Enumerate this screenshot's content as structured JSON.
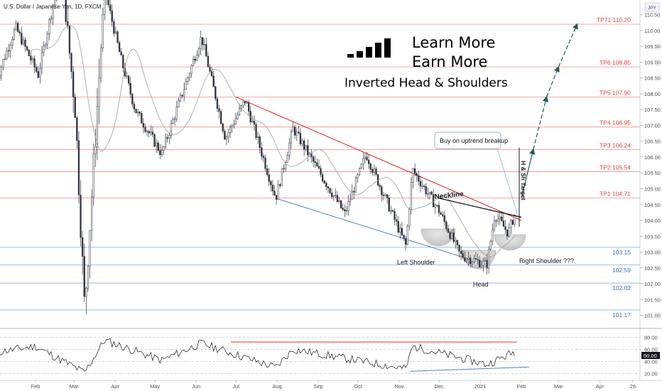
{
  "header": {
    "symbol_title": "U.S. Dollar / Japanese Yen, 1D, FXCM",
    "currency_badge": "JPY"
  },
  "branding": {
    "line1": "Learn More",
    "line2": "Earn   More",
    "pattern_title": "Inverted Head & Shoulders",
    "logo": "signal-bars-logo"
  },
  "annotations": {
    "neckline": "Neckline",
    "left_shoulder": "Left Shoulder",
    "head": "Head",
    "right_shoulder": "Right Shoulder ???",
    "buy_note": "Buy on uptrend breakup",
    "target_label": "H & Sh Target"
  },
  "colors": {
    "bull": "#26a69a",
    "bear": "#ef5350",
    "candle": "#2f3340",
    "tp_line": "#e57373",
    "support_line": "#7da7d9",
    "trend_red": "#e0312b",
    "trend_blue": "#4f86b8",
    "projection": "#1f5c55",
    "rsi_line": "#131722"
  },
  "chart_data": [
    {
      "type": "candlestick",
      "title": "U.S. Dollar / Japanese Yen, 1D, FXCM",
      "ylim": [
        100.8,
        111.6
      ],
      "y_ticks": [
        101.0,
        101.5,
        102.0,
        102.5,
        103.0,
        103.5,
        104.0,
        104.5,
        105.0,
        105.5,
        106.0,
        106.5,
        107.0,
        107.5,
        108.0,
        108.5,
        109.0,
        109.5,
        110.0,
        110.5,
        111.0
      ],
      "x_ticks": [
        "Feb",
        "Mar",
        "Apr",
        "May",
        "Jun",
        "Jul",
        "Aug",
        "Sep",
        "Oct",
        "Nov",
        "Dec",
        "2021",
        "Feb",
        "Mar",
        "Apr",
        "26"
      ],
      "targets": [
        {
          "label": "TP71",
          "value": 110.2
        },
        {
          "label": "TP6",
          "value": 108.85
        },
        {
          "label": "TP5",
          "value": 107.9
        },
        {
          "label": "TP4",
          "value": 106.95
        },
        {
          "label": "TP3",
          "value": 106.24
        },
        {
          "label": "TP2",
          "value": 105.54
        },
        {
          "label": "TP1",
          "value": 104.71
        }
      ],
      "support_levels": [
        103.15,
        102.59,
        102.02,
        101.17
      ],
      "price_path": [
        {
          "x": "2020-01-02",
          "y": 108.4
        },
        {
          "x": "2020-01-17",
          "y": 110.1
        },
        {
          "x": "2020-02-03",
          "y": 108.6
        },
        {
          "x": "2020-02-20",
          "y": 112.0
        },
        {
          "x": "2020-03-02",
          "y": 107.5
        },
        {
          "x": "2020-03-09",
          "y": 101.2
        },
        {
          "x": "2020-03-24",
          "y": 111.3
        },
        {
          "x": "2020-04-06",
          "y": 109.0
        },
        {
          "x": "2020-04-16",
          "y": 107.5
        },
        {
          "x": "2020-05-06",
          "y": 106.1
        },
        {
          "x": "2020-05-19",
          "y": 107.7
        },
        {
          "x": "2020-06-05",
          "y": 109.8
        },
        {
          "x": "2020-06-23",
          "y": 106.6
        },
        {
          "x": "2020-07-08",
          "y": 107.8
        },
        {
          "x": "2020-07-31",
          "y": 104.7
        },
        {
          "x": "2020-08-13",
          "y": 106.9
        },
        {
          "x": "2020-09-21",
          "y": 104.2
        },
        {
          "x": "2020-10-07",
          "y": 106.1
        },
        {
          "x": "2020-11-06",
          "y": 103.2
        },
        {
          "x": "2020-11-11",
          "y": 105.6
        },
        {
          "x": "2020-12-01",
          "y": 104.3
        },
        {
          "x": "2020-12-17",
          "y": 102.9
        },
        {
          "x": "2021-01-06",
          "y": 102.6
        },
        {
          "x": "2021-01-12",
          "y": 104.2
        },
        {
          "x": "2021-01-22",
          "y": 103.6
        },
        {
          "x": "2021-01-28",
          "y": 104.3
        }
      ],
      "neckline": [
        {
          "x": "2020-12-01",
          "y": 104.7
        },
        {
          "x": "2021-02-01",
          "y": 104.1
        }
      ],
      "upper_trendline": [
        {
          "x": "2020-07-01",
          "y": 107.9
        },
        {
          "x": "2021-02-01",
          "y": 104.0
        }
      ],
      "lower_trendline": [
        {
          "x": "2020-07-31",
          "y": 104.7
        },
        {
          "x": "2021-01-06",
          "y": 102.6
        }
      ],
      "projection_path": [
        {
          "x": "2021-02-01",
          "y": 104.71
        },
        {
          "x": "2021-02-10",
          "y": 106.24
        },
        {
          "x": "2021-02-20",
          "y": 107.9
        },
        {
          "x": "2021-03-01",
          "y": 108.85
        },
        {
          "x": "2021-03-15",
          "y": 110.2
        }
      ]
    },
    {
      "type": "line",
      "title": "RSI",
      "ylim": [
        15,
        85
      ],
      "y_ticks": [
        20.0,
        40.0,
        60.0,
        80.0
      ],
      "last_value": 50.0,
      "highlighted_ticks": [
        "60.00",
        "50.00",
        "40.00"
      ],
      "path": [
        {
          "x": "2020-01-02",
          "y": 55
        },
        {
          "x": "2020-02-01",
          "y": 65
        },
        {
          "x": "2020-03-09",
          "y": 22
        },
        {
          "x": "2020-03-24",
          "y": 75
        },
        {
          "x": "2020-05-06",
          "y": 42
        },
        {
          "x": "2020-06-05",
          "y": 70
        },
        {
          "x": "2020-07-31",
          "y": 30
        },
        {
          "x": "2020-08-13",
          "y": 60
        },
        {
          "x": "2020-11-06",
          "y": 28
        },
        {
          "x": "2020-11-11",
          "y": 65
        },
        {
          "x": "2021-01-06",
          "y": 35
        },
        {
          "x": "2021-01-28",
          "y": 57
        }
      ]
    }
  ]
}
